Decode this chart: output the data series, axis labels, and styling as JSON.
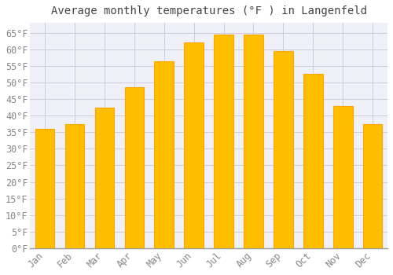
{
  "title": "Average monthly temperatures (°F ) in Langenfeld",
  "months": [
    "Jan",
    "Feb",
    "Mar",
    "Apr",
    "May",
    "Jun",
    "Jul",
    "Aug",
    "Sep",
    "Oct",
    "Nov",
    "Dec"
  ],
  "values": [
    36,
    37.5,
    42.5,
    48.5,
    56.5,
    62,
    64.5,
    64.5,
    59.5,
    52.5,
    43,
    37.5
  ],
  "bar_color": "#FFA500",
  "bar_face_color": "#FFBE00",
  "background_color": "#FFFFFF",
  "plot_bg_color": "#F0F0F8",
  "grid_color": "#CCCCDD",
  "text_color": "#888888",
  "title_color": "#444444",
  "ylim": [
    0,
    68
  ],
  "yticks": [
    0,
    5,
    10,
    15,
    20,
    25,
    30,
    35,
    40,
    45,
    50,
    55,
    60,
    65
  ],
  "ylabel_suffix": "°F",
  "title_fontsize": 10,
  "tick_fontsize": 8.5,
  "bar_width": 0.65
}
